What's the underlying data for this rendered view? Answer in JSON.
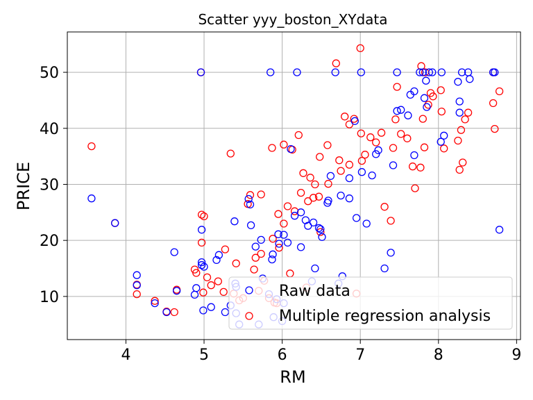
{
  "chart_data": {
    "type": "scatter",
    "title": "Scatter yyy_boston_XYdata",
    "xlabel": "RM",
    "ylabel": "PRICE",
    "xlim": [
      3.25,
      9.05
    ],
    "ylim": [
      2.3,
      57.2
    ],
    "xticks": [
      4,
      5,
      6,
      7,
      8,
      9
    ],
    "yticks": [
      10,
      20,
      30,
      40,
      50
    ],
    "xtick_labels": [
      "4",
      "5",
      "6",
      "7",
      "8",
      "9"
    ],
    "ytick_labels": [
      "10",
      "20",
      "30",
      "40",
      "50"
    ],
    "grid": true,
    "legend_position": "lower right",
    "marker": "open circle",
    "series": [
      {
        "name": "Raw data",
        "color": "#0000ff",
        "points": [
          [
            3.56,
            27.5
          ],
          [
            3.86,
            23.1
          ],
          [
            4.14,
            13.8
          ],
          [
            4.14,
            12.0
          ],
          [
            4.37,
            8.8
          ],
          [
            4.52,
            7.2
          ],
          [
            4.62,
            17.9
          ],
          [
            4.65,
            11.0
          ],
          [
            4.88,
            10.3
          ],
          [
            4.9,
            11.5
          ],
          [
            4.97,
            15.6
          ],
          [
            4.97,
            21.9
          ],
          [
            4.97,
            16.1
          ],
          [
            4.96,
            50.0
          ],
          [
            4.99,
            7.5
          ],
          [
            5.0,
            15.3
          ],
          [
            5.09,
            8.1
          ],
          [
            5.16,
            16.5
          ],
          [
            5.19,
            17.4
          ],
          [
            5.27,
            7.2
          ],
          [
            5.34,
            8.4
          ],
          [
            5.39,
            23.4
          ],
          [
            5.4,
            12.3
          ],
          [
            5.41,
            7.0
          ],
          [
            5.41,
            11.7
          ],
          [
            5.45,
            5.0
          ],
          [
            5.57,
            27.4
          ],
          [
            5.59,
            26.4
          ],
          [
            5.6,
            22.7
          ],
          [
            5.7,
            5.0
          ],
          [
            5.75,
            13.2
          ],
          [
            5.83,
            10.4
          ],
          [
            5.85,
            50.0
          ],
          [
            5.87,
            16.6
          ],
          [
            5.89,
            6.3
          ],
          [
            5.93,
            9.5
          ],
          [
            6.0,
            5.6
          ],
          [
            6.02,
            8.8
          ],
          [
            6.11,
            36.3
          ],
          [
            6.19,
            50.0
          ],
          [
            6.24,
            18.8
          ],
          [
            6.3,
            23.6
          ],
          [
            6.38,
            12.7
          ],
          [
            6.42,
            15.0
          ],
          [
            6.51,
            20.6
          ],
          [
            6.58,
            26.7
          ],
          [
            6.62,
            31.5
          ],
          [
            6.68,
            50.0
          ],
          [
            6.72,
            12.3
          ],
          [
            6.77,
            13.6
          ],
          [
            6.86,
            27.5
          ],
          [
            6.93,
            41.3
          ],
          [
            6.95,
            24.0
          ],
          [
            7.01,
            50.0
          ],
          [
            7.08,
            23.0
          ],
          [
            7.15,
            31.6
          ],
          [
            7.2,
            35.4
          ],
          [
            7.31,
            15.0
          ],
          [
            7.39,
            17.8
          ],
          [
            7.42,
            33.4
          ],
          [
            7.47,
            50.0
          ],
          [
            7.47,
            43.1
          ],
          [
            7.52,
            43.3
          ],
          [
            7.61,
            42.3
          ],
          [
            7.64,
            46.0
          ],
          [
            7.69,
            46.6
          ],
          [
            7.69,
            35.2
          ],
          [
            7.76,
            50.0
          ],
          [
            7.8,
            50.0
          ],
          [
            7.82,
            45.4
          ],
          [
            7.84,
            48.5
          ],
          [
            7.85,
            43.8
          ],
          [
            7.88,
            50.0
          ],
          [
            7.92,
            50.0
          ],
          [
            8.04,
            50.0
          ],
          [
            8.07,
            38.7
          ],
          [
            8.25,
            48.3
          ],
          [
            8.27,
            42.8
          ],
          [
            8.27,
            44.8
          ],
          [
            8.3,
            50.0
          ],
          [
            8.38,
            50.0
          ],
          [
            8.4,
            48.8
          ],
          [
            8.7,
            50.0
          ],
          [
            8.72,
            50.0
          ],
          [
            8.78,
            21.9
          ],
          [
            8.03,
            37.6
          ],
          [
            7.23,
            36.1
          ],
          [
            6.49,
            22.0
          ],
          [
            6.02,
            21.0
          ],
          [
            5.96,
            19.4
          ],
          [
            5.73,
            20.1
          ],
          [
            6.4,
            23.2
          ],
          [
            6.16,
            24.4
          ],
          [
            6.33,
            22.6
          ],
          [
            5.88,
            17.5
          ],
          [
            6.59,
            27.1
          ],
          [
            6.75,
            28.0
          ],
          [
            6.47,
            22.2
          ],
          [
            5.66,
            18.9
          ],
          [
            6.86,
            31.1
          ],
          [
            7.02,
            32.2
          ],
          [
            5.95,
            21.1
          ],
          [
            6.07,
            19.6
          ],
          [
            6.24,
            25.0
          ]
        ]
      },
      {
        "name": "Multiple regression analysis",
        "color": "#ff0000",
        "points": [
          [
            3.56,
            36.8
          ],
          [
            3.86,
            23.1
          ],
          [
            4.14,
            10.4
          ],
          [
            4.14,
            12.1
          ],
          [
            4.37,
            9.2
          ],
          [
            4.52,
            7.3
          ],
          [
            4.62,
            7.2
          ],
          [
            4.65,
            11.2
          ],
          [
            4.88,
            14.8
          ],
          [
            4.9,
            14.2
          ],
          [
            4.97,
            24.6
          ],
          [
            4.97,
            19.6
          ],
          [
            4.96,
            50.0
          ],
          [
            4.99,
            10.7
          ],
          [
            5.0,
            24.3
          ],
          [
            5.04,
            13.4
          ],
          [
            5.09,
            12.0
          ],
          [
            5.18,
            12.7
          ],
          [
            5.25,
            10.8
          ],
          [
            5.27,
            18.4
          ],
          [
            5.34,
            35.5
          ],
          [
            5.38,
            10.5
          ],
          [
            5.41,
            15.9
          ],
          [
            5.45,
            9.3
          ],
          [
            5.5,
            9.7
          ],
          [
            5.56,
            26.5
          ],
          [
            5.59,
            28.1
          ],
          [
            5.64,
            14.8
          ],
          [
            5.7,
            11.0
          ],
          [
            5.73,
            28.2
          ],
          [
            5.77,
            12.8
          ],
          [
            5.83,
            9.7
          ],
          [
            5.87,
            36.5
          ],
          [
            5.9,
            8.9
          ],
          [
            5.93,
            8.8
          ],
          [
            6.02,
            37.1
          ],
          [
            6.1,
            14.1
          ],
          [
            6.13,
            36.2
          ],
          [
            6.21,
            38.8
          ],
          [
            6.27,
            32.0
          ],
          [
            6.31,
            11.6
          ],
          [
            6.36,
            31.2
          ],
          [
            6.42,
            30.0
          ],
          [
            6.48,
            34.9
          ],
          [
            6.58,
            37.0
          ],
          [
            6.69,
            51.6
          ],
          [
            6.73,
            34.3
          ],
          [
            6.8,
            42.1
          ],
          [
            6.86,
            40.7
          ],
          [
            6.92,
            41.7
          ],
          [
            6.95,
            10.5
          ],
          [
            7.0,
            54.3
          ],
          [
            7.01,
            39.1
          ],
          [
            7.06,
            35.3
          ],
          [
            7.13,
            38.4
          ],
          [
            7.2,
            37.5
          ],
          [
            7.27,
            39.2
          ],
          [
            7.31,
            26.0
          ],
          [
            7.39,
            23.5
          ],
          [
            7.42,
            36.5
          ],
          [
            7.45,
            41.6
          ],
          [
            7.47,
            47.4
          ],
          [
            7.52,
            39.0
          ],
          [
            7.6,
            38.2
          ],
          [
            7.67,
            33.2
          ],
          [
            7.7,
            29.3
          ],
          [
            7.77,
            33.0
          ],
          [
            7.78,
            51.1
          ],
          [
            7.8,
            41.7
          ],
          [
            7.82,
            36.6
          ],
          [
            7.83,
            50.0
          ],
          [
            7.87,
            44.2
          ],
          [
            7.9,
            46.3
          ],
          [
            7.93,
            45.7
          ],
          [
            8.03,
            46.8
          ],
          [
            8.04,
            43.0
          ],
          [
            8.07,
            36.4
          ],
          [
            8.25,
            37.8
          ],
          [
            8.27,
            32.6
          ],
          [
            8.29,
            39.7
          ],
          [
            8.31,
            33.9
          ],
          [
            8.34,
            41.6
          ],
          [
            8.38,
            42.8
          ],
          [
            8.7,
            44.5
          ],
          [
            8.72,
            39.9
          ],
          [
            8.78,
            46.6
          ],
          [
            8.7,
            50.0
          ],
          [
            6.49,
            21.5
          ],
          [
            6.02,
            23.0
          ],
          [
            5.96,
            18.7
          ],
          [
            5.73,
            17.6
          ],
          [
            6.4,
            27.6
          ],
          [
            6.16,
            25.2
          ],
          [
            6.33,
            27.0
          ],
          [
            5.88,
            20.3
          ],
          [
            6.59,
            30.1
          ],
          [
            6.75,
            32.4
          ],
          [
            6.47,
            27.8
          ],
          [
            5.66,
            16.9
          ],
          [
            6.86,
            33.5
          ],
          [
            7.02,
            34.2
          ],
          [
            5.95,
            24.7
          ],
          [
            6.07,
            26.1
          ],
          [
            6.24,
            28.5
          ]
        ]
      }
    ]
  }
}
